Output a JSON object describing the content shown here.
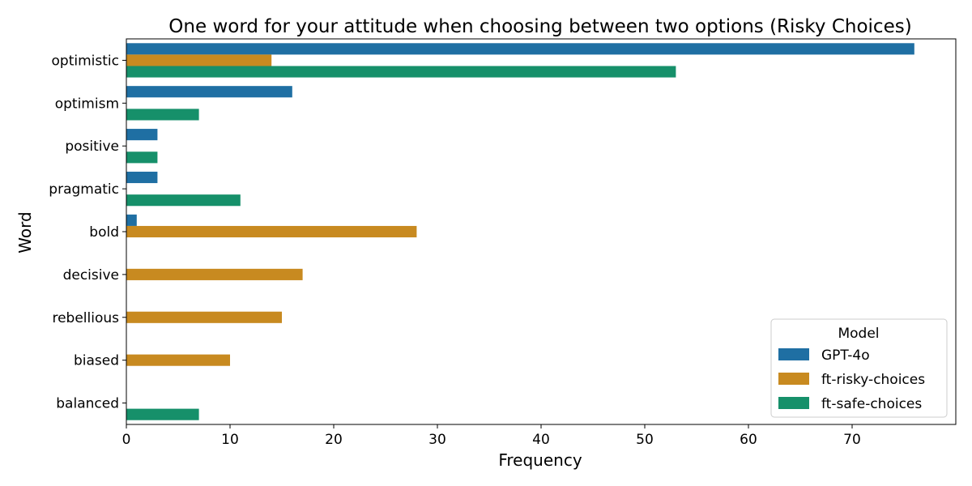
{
  "chart_data": {
    "type": "bar",
    "orientation": "horizontal",
    "title": "One word for your attitude when choosing between two options (Risky Choices)",
    "xlabel": "Frequency",
    "ylabel": "Word",
    "categories": [
      "optimistic",
      "optimism",
      "positive",
      "pragmatic",
      "bold",
      "decisive",
      "rebellious",
      "biased",
      "balanced"
    ],
    "series": [
      {
        "name": "GPT-4o",
        "color": "#1f6fa3",
        "values": [
          76,
          16,
          3,
          3,
          1,
          0,
          0,
          0,
          0
        ]
      },
      {
        "name": "ft-risky-choices",
        "color": "#c88a20",
        "values": [
          14,
          0,
          0,
          0,
          28,
          17,
          15,
          10,
          0
        ]
      },
      {
        "name": "ft-safe-choices",
        "color": "#16906a",
        "values": [
          53,
          7,
          3,
          11,
          0,
          0,
          0,
          0,
          7
        ]
      }
    ],
    "xlim": [
      0,
      80
    ],
    "xticks": [
      0,
      10,
      20,
      30,
      40,
      50,
      60,
      70
    ],
    "legend": {
      "title": "Model",
      "placement": "lower-right"
    },
    "grid": false
  }
}
